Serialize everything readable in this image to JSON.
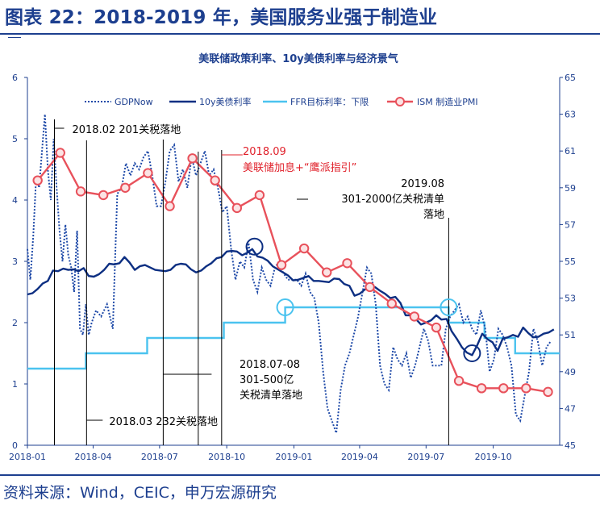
{
  "header": {
    "figure_title": "图表 22：2018-2019 年，美国服务业强于制造业"
  },
  "footer": {
    "source": "资料来源：Wind，CEIC，申万宏源研究"
  },
  "colors": {
    "brand": "#1d3f8f",
    "gdpnow": "#1f4aa8",
    "treasury_10y": "#0d2f82",
    "ffr": "#4bc3ef",
    "pmi": "#e8515b",
    "pmi_marker_fill": "#fbe3e4",
    "annotation_red": "#e0202a"
  },
  "chart_data": {
    "type": "line",
    "title": "美联储政策利率、10y美债利率与经济景气",
    "y_left": {
      "min": 0,
      "max": 6,
      "ticks": [
        "0",
        "1",
        "2",
        "3",
        "4",
        "5",
        "6"
      ]
    },
    "y_right": {
      "min": 45,
      "max": 65,
      "ticks": [
        "45",
        "47",
        "49",
        "51",
        "53",
        "55",
        "57",
        "59",
        "61",
        "63",
        "65"
      ]
    },
    "x_axis": {
      "start": "2018-01",
      "end": "2019-12",
      "ticks": [
        "2018-01",
        "2018-04",
        "2018-07",
        "2018-10",
        "2019-01",
        "2019-04",
        "2019-07",
        "2019-10"
      ]
    },
    "legend": {
      "placement": "top",
      "entries": [
        "GDPNow",
        "10y美债利率",
        "FFR目标利率：下限",
        "ISM 制造业PMI"
      ]
    },
    "series": [
      {
        "name": "GDPNow",
        "axis": "left",
        "style": "dotted",
        "dates": [
          "2018-01-01",
          "2018-01-05",
          "2018-01-09",
          "2018-01-13",
          "2018-01-17",
          "2018-01-21",
          "2018-01-25",
          "2018-01-29",
          "2018-02-02",
          "2018-02-06",
          "2018-02-10",
          "2018-02-14",
          "2018-02-18",
          "2018-02-22",
          "2018-02-26",
          "2018-03-02",
          "2018-03-06",
          "2018-03-10",
          "2018-03-14",
          "2018-03-18",
          "2018-03-22",
          "2018-03-26",
          "2018-03-30",
          "2018-04-05",
          "2018-04-12",
          "2018-04-20",
          "2018-04-28",
          "2018-05-04",
          "2018-05-10",
          "2018-05-16",
          "2018-05-22",
          "2018-05-28",
          "2018-06-03",
          "2018-06-09",
          "2018-06-15",
          "2018-06-21",
          "2018-06-27",
          "2018-07-03",
          "2018-07-09",
          "2018-07-15",
          "2018-07-21",
          "2018-07-27",
          "2018-08-02",
          "2018-08-08",
          "2018-08-14",
          "2018-08-20",
          "2018-08-26",
          "2018-09-01",
          "2018-09-07",
          "2018-09-13",
          "2018-09-19",
          "2018-09-25",
          "2018-10-01",
          "2018-10-07",
          "2018-10-13",
          "2018-10-19",
          "2018-10-25",
          "2018-10-31",
          "2018-11-06",
          "2018-11-12",
          "2018-11-18",
          "2018-11-24",
          "2018-11-30",
          "2018-12-06",
          "2018-12-12",
          "2018-12-18",
          "2018-12-24",
          "2018-12-30",
          "2019-01-05",
          "2019-01-11",
          "2019-01-17",
          "2019-01-23",
          "2019-01-29",
          "2019-02-04",
          "2019-02-10",
          "2019-02-16",
          "2019-02-22",
          "2019-02-28",
          "2019-03-06",
          "2019-03-12",
          "2019-03-18",
          "2019-03-24",
          "2019-03-30",
          "2019-04-05",
          "2019-04-11",
          "2019-04-17",
          "2019-04-23",
          "2019-04-29",
          "2019-05-05",
          "2019-05-11",
          "2019-05-17",
          "2019-05-23",
          "2019-05-29",
          "2019-06-04",
          "2019-06-10",
          "2019-06-16",
          "2019-06-22",
          "2019-06-28",
          "2019-07-04",
          "2019-07-10",
          "2019-07-16",
          "2019-07-22",
          "2019-07-28",
          "2019-08-03",
          "2019-08-09",
          "2019-08-15",
          "2019-08-21",
          "2019-08-27",
          "2019-09-02",
          "2019-09-08",
          "2019-09-14",
          "2019-09-20",
          "2019-09-26",
          "2019-10-02",
          "2019-10-08",
          "2019-10-14",
          "2019-10-20",
          "2019-10-26",
          "2019-11-01",
          "2019-11-07",
          "2019-11-13",
          "2019-11-19",
          "2019-11-25",
          "2019-12-01",
          "2019-12-07",
          "2019-12-13",
          "2019-12-19"
        ],
        "values": [
          3.2,
          2.7,
          3.4,
          4.4,
          4.2,
          4.8,
          5.4,
          4.5,
          4.0,
          5.0,
          4.2,
          3.5,
          3.0,
          3.6,
          3.1,
          2.9,
          2.5,
          3.5,
          1.9,
          1.8,
          2.3,
          1.8,
          2.0,
          2.2,
          2.1,
          2.3,
          1.9,
          4.1,
          4.2,
          4.6,
          4.4,
          4.6,
          4.5,
          4.7,
          4.8,
          4.4,
          3.9,
          3.9,
          4.3,
          4.8,
          4.9,
          4.3,
          4.5,
          4.2,
          4.7,
          4.4,
          4.6,
          4.8,
          4.4,
          4.5,
          4.2,
          3.8,
          3.9,
          3.2,
          2.7,
          3.0,
          2.9,
          3.3,
          2.7,
          2.5,
          2.9,
          2.7,
          2.6,
          2.9,
          3.0,
          2.8,
          2.7,
          2.7,
          2.7,
          2.6,
          2.8,
          2.5,
          2.4,
          2.0,
          1.2,
          0.6,
          0.4,
          0.2,
          0.9,
          1.3,
          1.5,
          1.8,
          2.1,
          2.5,
          2.9,
          2.8,
          2.3,
          1.3,
          1.0,
          0.9,
          1.6,
          1.4,
          1.3,
          1.5,
          1.1,
          1.3,
          1.6,
          1.9,
          1.7,
          1.3,
          1.3,
          1.3,
          1.9,
          2.1,
          2.2,
          2.3,
          2.0,
          2.1,
          1.9,
          1.8,
          2.2,
          1.9,
          1.2,
          1.4,
          1.9,
          1.8,
          1.6,
          1.3,
          0.5,
          0.4,
          0.8,
          1.2,
          1.9,
          1.7,
          1.3,
          1.6,
          1.7
        ]
      },
      {
        "name": "10y美债利率",
        "axis": "left",
        "style": "solid",
        "dates": [
          "2018-01-01",
          "2018-01-08",
          "2018-01-15",
          "2018-01-22",
          "2018-01-29",
          "2018-02-05",
          "2018-02-12",
          "2018-02-19",
          "2018-02-26",
          "2018-03-05",
          "2018-03-12",
          "2018-03-19",
          "2018-03-26",
          "2018-04-02",
          "2018-04-09",
          "2018-04-16",
          "2018-04-23",
          "2018-04-30",
          "2018-05-07",
          "2018-05-14",
          "2018-05-21",
          "2018-05-28",
          "2018-06-04",
          "2018-06-11",
          "2018-06-18",
          "2018-06-25",
          "2018-07-02",
          "2018-07-09",
          "2018-07-16",
          "2018-07-23",
          "2018-07-30",
          "2018-08-06",
          "2018-08-13",
          "2018-08-20",
          "2018-08-27",
          "2018-09-03",
          "2018-09-10",
          "2018-09-17",
          "2018-09-24",
          "2018-10-01",
          "2018-10-08",
          "2018-10-15",
          "2018-10-22",
          "2018-10-29",
          "2018-11-05",
          "2018-11-12",
          "2018-11-19",
          "2018-11-26",
          "2018-12-03",
          "2018-12-10",
          "2018-12-17",
          "2018-12-24",
          "2018-12-31",
          "2019-01-07",
          "2019-01-14",
          "2019-01-21",
          "2019-01-28",
          "2019-02-04",
          "2019-02-11",
          "2019-02-18",
          "2019-02-25",
          "2019-03-04",
          "2019-03-11",
          "2019-03-18",
          "2019-03-25",
          "2019-04-01",
          "2019-04-08",
          "2019-04-15",
          "2019-04-22",
          "2019-04-29",
          "2019-05-06",
          "2019-05-13",
          "2019-05-20",
          "2019-05-27",
          "2019-06-03",
          "2019-06-10",
          "2019-06-17",
          "2019-06-24",
          "2019-07-01",
          "2019-07-08",
          "2019-07-15",
          "2019-07-22",
          "2019-07-29",
          "2019-08-05",
          "2019-08-12",
          "2019-08-19",
          "2019-08-26",
          "2019-09-02",
          "2019-09-09",
          "2019-09-16",
          "2019-09-23",
          "2019-09-30",
          "2019-10-07",
          "2019-10-14",
          "2019-10-21",
          "2019-10-28",
          "2019-11-04",
          "2019-11-11",
          "2019-11-18",
          "2019-11-25",
          "2019-12-02",
          "2019-12-09",
          "2019-12-16",
          "2019-12-23"
        ],
        "values": [
          2.46,
          2.48,
          2.55,
          2.64,
          2.68,
          2.85,
          2.84,
          2.88,
          2.86,
          2.87,
          2.84,
          2.89,
          2.76,
          2.75,
          2.79,
          2.86,
          2.96,
          2.95,
          2.97,
          3.07,
          2.98,
          2.86,
          2.92,
          2.94,
          2.9,
          2.86,
          2.85,
          2.84,
          2.86,
          2.94,
          2.96,
          2.95,
          2.87,
          2.82,
          2.85,
          2.92,
          2.97,
          3.05,
          3.07,
          3.16,
          3.17,
          3.16,
          3.1,
          3.14,
          3.2,
          3.08,
          3.06,
          3.01,
          2.92,
          2.87,
          2.82,
          2.77,
          2.69,
          2.7,
          2.73,
          2.76,
          2.68,
          2.68,
          2.67,
          2.66,
          2.72,
          2.71,
          2.63,
          2.6,
          2.44,
          2.47,
          2.54,
          2.58,
          2.58,
          2.52,
          2.47,
          2.4,
          2.42,
          2.32,
          2.12,
          2.12,
          2.06,
          1.97,
          2.0,
          2.04,
          2.12,
          2.05,
          2.06,
          1.86,
          1.74,
          1.6,
          1.51,
          1.47,
          1.63,
          1.82,
          1.73,
          1.68,
          1.54,
          1.74,
          1.76,
          1.8,
          1.77,
          1.92,
          1.83,
          1.76,
          1.77,
          1.82,
          1.84,
          1.89
        ]
      },
      {
        "name": "FFR目标利率：下限",
        "axis": "left",
        "style": "step",
        "dates": [
          "2018-01-01",
          "2018-03-22",
          "2018-06-14",
          "2018-09-27",
          "2018-12-20",
          "2019-08-01",
          "2019-09-19",
          "2019-10-31",
          "2019-12-31"
        ],
        "values": [
          1.25,
          1.5,
          1.75,
          2.0,
          2.25,
          2.0,
          1.75,
          1.5,
          1.5
        ]
      },
      {
        "name": "ISM 制造业PMI",
        "axis": "right",
        "style": "line-marker",
        "dates": [
          "2018-01",
          "2018-02",
          "2018-03",
          "2018-04",
          "2018-05",
          "2018-06",
          "2018-07",
          "2018-08",
          "2018-09",
          "2018-10",
          "2018-11",
          "2018-12",
          "2019-01",
          "2019-02",
          "2019-03",
          "2019-04",
          "2019-05",
          "2019-06",
          "2019-07",
          "2019-08",
          "2019-09",
          "2019-10",
          "2019-11",
          "2019-12"
        ],
        "values": [
          59.4,
          60.9,
          58.8,
          58.6,
          59.0,
          59.8,
          58.0,
          60.6,
          59.4,
          57.9,
          58.6,
          54.8,
          55.7,
          54.4,
          54.9,
          53.6,
          52.7,
          52.0,
          51.4,
          48.5,
          48.1,
          48.1,
          48.1,
          47.9
        ]
      }
    ],
    "annotations": [
      {
        "text": "2018.02 201关税落地",
        "date": "2018-02-07",
        "color": "black"
      },
      {
        "text": "2018.03  232关税落地",
        "date": "2018-03-23",
        "color": "black"
      },
      {
        "text_lines": [
          "2018.07-08",
          "301-500亿",
          "关税清单落地"
        ],
        "dates": [
          "2018-07-06",
          "2018-08-23"
        ],
        "color": "black"
      },
      {
        "text_lines": [
          "2018.09",
          "美联储加息+“鹰派指引”"
        ],
        "date": "2018-09-24",
        "color": "red"
      },
      {
        "text_lines": [
          "2019.08",
          "301-2000亿关税清单",
          "落地"
        ],
        "date": "2019-08-01",
        "color": "black"
      }
    ],
    "highlight_circles": [
      {
        "series": "10y美债利率",
        "date": "2018-11-08",
        "value": 3.24
      },
      {
        "series": "FFR目标利率：下限",
        "date": "2018-12-20",
        "value": 2.25
      },
      {
        "series": "FFR目标利率：下限",
        "date": "2019-08-01",
        "value": 2.25
      },
      {
        "series": "10y美债利率",
        "date": "2019-09-02",
        "value": 1.5
      }
    ]
  }
}
